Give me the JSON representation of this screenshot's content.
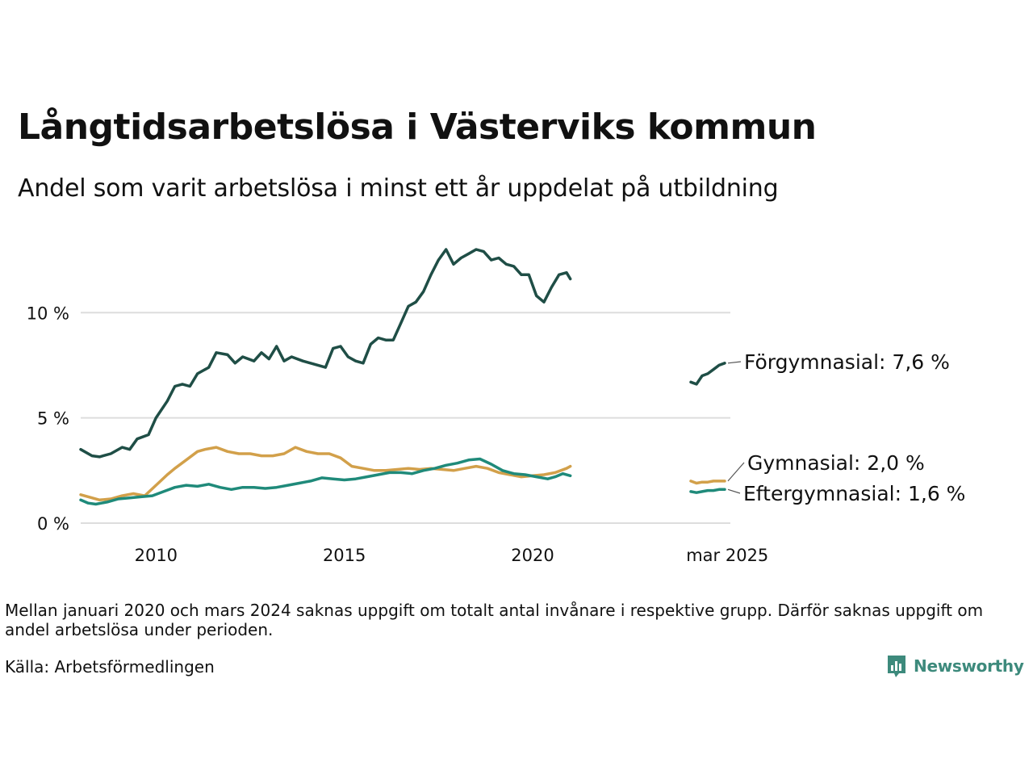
{
  "title": "Långtidsarbetslösa i Västerviks kommun",
  "subtitle": "Andel som varit arbetslösa i minst ett år uppdelat på utbildning",
  "note": "Mellan januari 2020 och mars 2024 saknas uppgift om totalt antal invånare i respektive grupp. Därför saknas uppgift om andel arbetslösa under perioden.",
  "source": "Källa: Arbetsförmedlingen",
  "brand": "Newsworthy",
  "colors": {
    "forgymnasial": "#1f4e46",
    "gymnasial": "#d2a04a",
    "eftergymnasial": "#1f8a7a",
    "grid": "#dddddd",
    "brand": "#3d8a7c"
  },
  "chart_data": {
    "type": "line",
    "x_unit": "decimal year",
    "x_ticks": [
      {
        "x": 2010,
        "label": "2010"
      },
      {
        "x": 2015,
        "label": "2015"
      },
      {
        "x": 2020,
        "label": "2020"
      },
      {
        "x": 2025.17,
        "label": "mar 2025"
      }
    ],
    "y_ticks": [
      {
        "y": 0,
        "label": "0 %"
      },
      {
        "y": 5,
        "label": "5 %"
      },
      {
        "y": 10,
        "label": "10 %"
      }
    ],
    "ylim": [
      0,
      13.5
    ],
    "xlim": [
      2008,
      2025.25
    ],
    "grid": "horizontal",
    "series": [
      {
        "name": "Förgymnasial",
        "end_label": "Förgymnasial: 7,6 %",
        "color_key": "forgymnasial",
        "segments": [
          [
            [
              2008.0,
              3.5
            ],
            [
              2008.3,
              3.2
            ],
            [
              2008.5,
              3.15
            ],
            [
              2008.8,
              3.3
            ],
            [
              2009.1,
              3.6
            ],
            [
              2009.3,
              3.5
            ],
            [
              2009.5,
              4.0
            ],
            [
              2009.8,
              4.2
            ],
            [
              2010.0,
              5.0
            ],
            [
              2010.3,
              5.8
            ],
            [
              2010.5,
              6.5
            ],
            [
              2010.7,
              6.6
            ],
            [
              2010.9,
              6.5
            ],
            [
              2011.1,
              7.1
            ],
            [
              2011.4,
              7.4
            ],
            [
              2011.6,
              8.1
            ],
            [
              2011.9,
              8.0
            ],
            [
              2012.1,
              7.6
            ],
            [
              2012.3,
              7.9
            ],
            [
              2012.6,
              7.7
            ],
            [
              2012.8,
              8.1
            ],
            [
              2013.0,
              7.8
            ],
            [
              2013.2,
              8.4
            ],
            [
              2013.4,
              7.7
            ],
            [
              2013.6,
              7.9
            ],
            [
              2013.9,
              7.7
            ],
            [
              2014.1,
              7.6
            ],
            [
              2014.3,
              7.5
            ],
            [
              2014.5,
              7.4
            ],
            [
              2014.7,
              8.3
            ],
            [
              2014.9,
              8.4
            ],
            [
              2015.1,
              7.9
            ],
            [
              2015.3,
              7.7
            ],
            [
              2015.5,
              7.6
            ],
            [
              2015.7,
              8.5
            ],
            [
              2015.9,
              8.8
            ],
            [
              2016.1,
              8.7
            ],
            [
              2016.3,
              8.7
            ],
            [
              2016.5,
              9.5
            ],
            [
              2016.7,
              10.3
            ],
            [
              2016.9,
              10.5
            ],
            [
              2017.1,
              11.0
            ],
            [
              2017.3,
              11.8
            ],
            [
              2017.5,
              12.5
            ],
            [
              2017.7,
              13.0
            ],
            [
              2017.9,
              12.3
            ],
            [
              2018.1,
              12.6
            ],
            [
              2018.3,
              12.8
            ],
            [
              2018.5,
              13.0
            ],
            [
              2018.7,
              12.9
            ],
            [
              2018.9,
              12.5
            ],
            [
              2019.1,
              12.6
            ],
            [
              2019.3,
              12.3
            ],
            [
              2019.5,
              12.2
            ],
            [
              2019.7,
              11.8
            ],
            [
              2019.9,
              11.8
            ],
            [
              2020.1,
              10.8
            ],
            [
              2020.3,
              10.5
            ],
            [
              2020.5,
              11.2
            ],
            [
              2020.7,
              11.8
            ],
            [
              2020.9,
              11.9
            ],
            [
              2021.0,
              11.6
            ]
          ],
          [
            [
              2024.2,
              6.7
            ],
            [
              2024.35,
              6.6
            ],
            [
              2024.5,
              7.0
            ],
            [
              2024.65,
              7.1
            ],
            [
              2024.8,
              7.3
            ],
            [
              2024.95,
              7.5
            ],
            [
              2025.1,
              7.6
            ]
          ]
        ]
      },
      {
        "name": "Gymnasial",
        "end_label": "Gymnasial: 2,0 %",
        "color_key": "gymnasial",
        "segments": [
          [
            [
              2008.0,
              1.35
            ],
            [
              2008.3,
              1.2
            ],
            [
              2008.5,
              1.1
            ],
            [
              2008.8,
              1.15
            ],
            [
              2009.1,
              1.3
            ],
            [
              2009.4,
              1.4
            ],
            [
              2009.7,
              1.3
            ],
            [
              2010.0,
              1.8
            ],
            [
              2010.3,
              2.3
            ],
            [
              2010.5,
              2.6
            ],
            [
              2010.8,
              3.0
            ],
            [
              2011.1,
              3.4
            ],
            [
              2011.3,
              3.5
            ],
            [
              2011.6,
              3.6
            ],
            [
              2011.9,
              3.4
            ],
            [
              2012.2,
              3.3
            ],
            [
              2012.5,
              3.3
            ],
            [
              2012.8,
              3.2
            ],
            [
              2013.1,
              3.2
            ],
            [
              2013.4,
              3.3
            ],
            [
              2013.7,
              3.6
            ],
            [
              2014.0,
              3.4
            ],
            [
              2014.3,
              3.3
            ],
            [
              2014.6,
              3.3
            ],
            [
              2014.9,
              3.1
            ],
            [
              2015.2,
              2.7
            ],
            [
              2015.5,
              2.6
            ],
            [
              2015.8,
              2.5
            ],
            [
              2016.1,
              2.5
            ],
            [
              2016.4,
              2.55
            ],
            [
              2016.7,
              2.6
            ],
            [
              2017.0,
              2.55
            ],
            [
              2017.3,
              2.6
            ],
            [
              2017.6,
              2.55
            ],
            [
              2017.9,
              2.5
            ],
            [
              2018.2,
              2.6
            ],
            [
              2018.5,
              2.7
            ],
            [
              2018.8,
              2.6
            ],
            [
              2019.1,
              2.4
            ],
            [
              2019.4,
              2.3
            ],
            [
              2019.7,
              2.2
            ],
            [
              2020.0,
              2.25
            ],
            [
              2020.3,
              2.3
            ],
            [
              2020.6,
              2.4
            ],
            [
              2020.9,
              2.6
            ],
            [
              2021.0,
              2.7
            ]
          ],
          [
            [
              2024.2,
              2.0
            ],
            [
              2024.35,
              1.9
            ],
            [
              2024.5,
              1.95
            ],
            [
              2024.65,
              1.95
            ],
            [
              2024.8,
              2.0
            ],
            [
              2024.95,
              2.0
            ],
            [
              2025.1,
              2.0
            ]
          ]
        ]
      },
      {
        "name": "Eftergymnasial",
        "end_label": "Eftergymnasial: 1,6 %",
        "color_key": "eftergymnasial",
        "segments": [
          [
            [
              2008.0,
              1.1
            ],
            [
              2008.2,
              0.95
            ],
            [
              2008.4,
              0.9
            ],
            [
              2008.7,
              1.0
            ],
            [
              2009.0,
              1.15
            ],
            [
              2009.3,
              1.2
            ],
            [
              2009.6,
              1.25
            ],
            [
              2009.9,
              1.3
            ],
            [
              2010.2,
              1.5
            ],
            [
              2010.5,
              1.7
            ],
            [
              2010.8,
              1.8
            ],
            [
              2011.1,
              1.75
            ],
            [
              2011.4,
              1.85
            ],
            [
              2011.7,
              1.7
            ],
            [
              2012.0,
              1.6
            ],
            [
              2012.3,
              1.7
            ],
            [
              2012.6,
              1.7
            ],
            [
              2012.9,
              1.65
            ],
            [
              2013.2,
              1.7
            ],
            [
              2013.5,
              1.8
            ],
            [
              2013.8,
              1.9
            ],
            [
              2014.1,
              2.0
            ],
            [
              2014.4,
              2.15
            ],
            [
              2014.7,
              2.1
            ],
            [
              2015.0,
              2.05
            ],
            [
              2015.3,
              2.1
            ],
            [
              2015.6,
              2.2
            ],
            [
              2015.9,
              2.3
            ],
            [
              2016.2,
              2.4
            ],
            [
              2016.5,
              2.4
            ],
            [
              2016.8,
              2.35
            ],
            [
              2017.1,
              2.5
            ],
            [
              2017.4,
              2.6
            ],
            [
              2017.7,
              2.75
            ],
            [
              2018.0,
              2.85
            ],
            [
              2018.3,
              3.0
            ],
            [
              2018.6,
              3.05
            ],
            [
              2018.9,
              2.8
            ],
            [
              2019.2,
              2.5
            ],
            [
              2019.5,
              2.35
            ],
            [
              2019.8,
              2.3
            ],
            [
              2020.1,
              2.2
            ],
            [
              2020.4,
              2.1
            ],
            [
              2020.6,
              2.2
            ],
            [
              2020.8,
              2.35
            ],
            [
              2021.0,
              2.25
            ]
          ],
          [
            [
              2024.2,
              1.5
            ],
            [
              2024.35,
              1.45
            ],
            [
              2024.5,
              1.5
            ],
            [
              2024.65,
              1.55
            ],
            [
              2024.8,
              1.55
            ],
            [
              2024.95,
              1.6
            ],
            [
              2025.1,
              1.6
            ]
          ]
        ]
      }
    ]
  }
}
